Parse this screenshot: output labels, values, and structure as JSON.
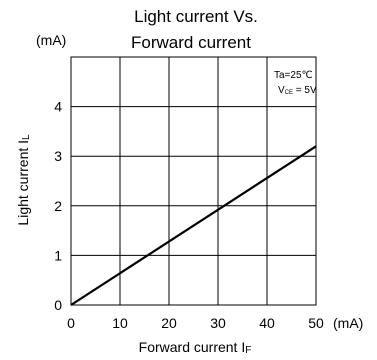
{
  "chart_data": {
    "type": "line",
    "title_lines": [
      "Light current Vs.",
      "Forward current"
    ],
    "y_unit": "(mA)",
    "x_unit": "(mA)",
    "xlabel": {
      "text": "Forward current I",
      "sub": "F"
    },
    "ylabel": {
      "text": "Light current I",
      "sub": "L"
    },
    "conditions": [
      {
        "main": "Ta=25℃",
        "sub": ""
      },
      {
        "main": "V",
        "sub": "CE",
        "rest": " = 5V"
      }
    ],
    "x_ticks": [
      0,
      10,
      20,
      30,
      40,
      50
    ],
    "y_ticks": [
      0,
      1,
      2,
      3,
      4
    ],
    "xlim": [
      0,
      50
    ],
    "ylim": [
      0,
      5
    ],
    "grid": true,
    "series": [
      {
        "x": [
          0,
          50
        ],
        "y": [
          0,
          3.2
        ]
      }
    ],
    "colors": {
      "line": "#000000",
      "grid": "#000000"
    }
  }
}
